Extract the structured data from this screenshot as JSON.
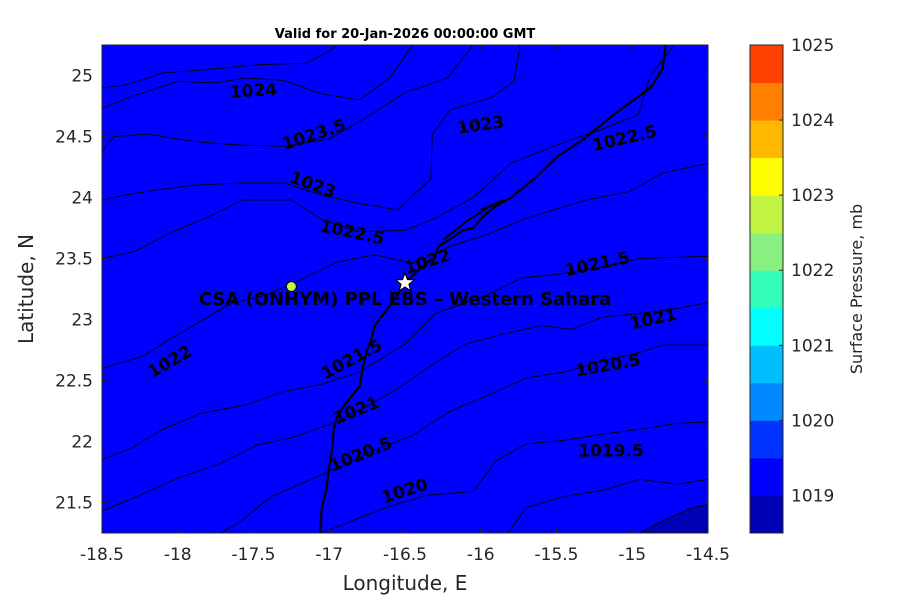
{
  "chart_data": {
    "type": "contour",
    "title": "Valid for 20-Jan-2026 00:00:00 GMT",
    "xlabel": "Longitude, E",
    "ylabel": "Latitude, N",
    "xlim": [
      -18.5,
      -14.5
    ],
    "ylim": [
      21.25,
      25.25
    ],
    "xticks": [
      "-18.5",
      "-18",
      "-17.5",
      "-17",
      "-16.5",
      "-16",
      "-15.5",
      "-15",
      "-14.5"
    ],
    "yticks": [
      "21.5",
      "22",
      "22.5",
      "23",
      "23.5",
      "24",
      "24.5",
      "25"
    ],
    "colorbar": {
      "label": "Surface Pressure, mb",
      "range": [
        1018.5,
        1025
      ],
      "ticks": [
        "1019",
        "1020",
        "1021",
        "1022",
        "1023",
        "1024",
        "1025"
      ],
      "levels": [
        {
          "from": 1018.5,
          "to": 1019.0,
          "color": "#0000b4"
        },
        {
          "from": 1019.0,
          "to": 1019.5,
          "color": "#0000ff"
        },
        {
          "from": 1019.5,
          "to": 1020.0,
          "color": "#0033ff"
        },
        {
          "from": 1020.0,
          "to": 1020.5,
          "color": "#0088ff"
        },
        {
          "from": 1020.5,
          "to": 1021.0,
          "color": "#00bfff"
        },
        {
          "from": 1021.0,
          "to": 1021.5,
          "color": "#00ffff"
        },
        {
          "from": 1021.5,
          "to": 1022.0,
          "color": "#33ffbb"
        },
        {
          "from": 1022.0,
          "to": 1022.5,
          "color": "#88f080"
        },
        {
          "from": 1022.5,
          "to": 1023.0,
          "color": "#c2f542"
        },
        {
          "from": 1023.0,
          "to": 1023.5,
          "color": "#ffff00"
        },
        {
          "from": 1023.5,
          "to": 1024.0,
          "color": "#ffb800"
        },
        {
          "from": 1024.0,
          "to": 1024.5,
          "color": "#ff8000"
        },
        {
          "from": 1024.5,
          "to": 1025.0,
          "color": "#ff4000"
        }
      ]
    },
    "contours": [
      {
        "level": 1024.5,
        "color": "#ff4000",
        "points": [
          [
            -18.5,
            25.25
          ],
          [
            -18.5,
            24.9
          ],
          [
            -18.35,
            24.92
          ],
          [
            -18.1,
            25.02
          ],
          [
            -17.8,
            25.05
          ],
          [
            -17.45,
            25.09
          ],
          [
            -17.15,
            25.1
          ],
          [
            -17,
            25.2
          ],
          [
            -16.95,
            25.25
          ]
        ]
      },
      {
        "level": 1024,
        "color": "#ff8000",
        "points": [
          [
            -18.5,
            25.25
          ],
          [
            -18.5,
            24.73
          ],
          [
            -18.3,
            24.83
          ],
          [
            -18.0,
            24.95
          ],
          [
            -17.75,
            24.94
          ],
          [
            -17.55,
            24.98
          ],
          [
            -17.3,
            24.96
          ],
          [
            -17.05,
            24.85
          ],
          [
            -16.8,
            24.8
          ],
          [
            -16.6,
            24.98
          ],
          [
            -16.45,
            25.25
          ]
        ]
      },
      {
        "level": 1023.5,
        "color": "#ffb800",
        "points": [
          [
            -18.5,
            25.25
          ],
          [
            -18.5,
            24.38
          ],
          [
            -18.42,
            24.5
          ],
          [
            -18.2,
            24.52
          ],
          [
            -17.9,
            24.46
          ],
          [
            -17.6,
            24.43
          ],
          [
            -17.3,
            24.42
          ],
          [
            -17.0,
            24.48
          ],
          [
            -16.75,
            24.66
          ],
          [
            -16.5,
            24.86
          ],
          [
            -16.22,
            24.98
          ],
          [
            -16.05,
            25.25
          ]
        ]
      },
      {
        "level": 1023,
        "color": "#ffff00",
        "points": [
          [
            -18.5,
            25.25
          ],
          [
            -18.5,
            23.98
          ],
          [
            -18.35,
            24.02
          ],
          [
            -18.15,
            24.06
          ],
          [
            -17.9,
            24.1
          ],
          [
            -17.6,
            24.12
          ],
          [
            -17.3,
            24.12
          ],
          [
            -17.05,
            24.02
          ],
          [
            -16.8,
            23.95
          ],
          [
            -16.55,
            23.9
          ],
          [
            -16.33,
            24.15
          ],
          [
            -16.32,
            24.52
          ],
          [
            -16.2,
            24.72
          ],
          [
            -15.93,
            24.82
          ],
          [
            -15.78,
            24.95
          ],
          [
            -15.74,
            25.25
          ]
        ]
      },
      {
        "level": 1022.5,
        "color": "#c2f542",
        "points": [
          [
            -18.5,
            25.25
          ],
          [
            -18.5,
            23.5
          ],
          [
            -18.28,
            23.56
          ],
          [
            -18.05,
            23.71
          ],
          [
            -17.8,
            23.84
          ],
          [
            -17.57,
            23.98
          ],
          [
            -17.25,
            23.98
          ],
          [
            -17.05,
            23.82
          ],
          [
            -16.8,
            23.72
          ],
          [
            -16.5,
            23.73
          ],
          [
            -16.3,
            23.83
          ],
          [
            -16.05,
            24.0
          ],
          [
            -15.8,
            24.28
          ],
          [
            -15.5,
            24.43
          ],
          [
            -15.2,
            24.56
          ],
          [
            -14.96,
            24.68
          ],
          [
            -14.88,
            25.0
          ],
          [
            -14.72,
            25.25
          ]
        ]
      },
      {
        "level": 1022,
        "color": "#88f080",
        "points": [
          [
            -18.5,
            25.25
          ],
          [
            -18.5,
            22.6
          ],
          [
            -18.23,
            22.7
          ],
          [
            -18.05,
            22.84
          ],
          [
            -17.87,
            22.97
          ],
          [
            -17.65,
            23.13
          ],
          [
            -17.42,
            23.2
          ],
          [
            -17.2,
            23.32
          ],
          [
            -16.95,
            23.47
          ],
          [
            -16.7,
            23.53
          ],
          [
            -16.45,
            23.46
          ],
          [
            -16.2,
            23.6
          ],
          [
            -15.95,
            23.7
          ],
          [
            -15.7,
            23.83
          ],
          [
            -15.3,
            23.98
          ],
          [
            -15.02,
            24.05
          ],
          [
            -14.8,
            24.2
          ],
          [
            -14.5,
            24.28
          ],
          [
            -14.5,
            25.25
          ]
        ]
      },
      {
        "level": 1021.5,
        "color": "#33ffbb",
        "points": [
          [
            -18.5,
            25.25
          ],
          [
            -18.5,
            21.85
          ],
          [
            -18.3,
            21.95
          ],
          [
            -18.1,
            22.1
          ],
          [
            -17.85,
            22.23
          ],
          [
            -17.55,
            22.3
          ],
          [
            -17.3,
            22.41
          ],
          [
            -17.05,
            22.47
          ],
          [
            -16.8,
            22.57
          ],
          [
            -16.5,
            22.8
          ],
          [
            -16.3,
            23.05
          ],
          [
            -15.98,
            23.19
          ],
          [
            -15.73,
            23.34
          ],
          [
            -15.5,
            23.37
          ],
          [
            -15.2,
            23.43
          ],
          [
            -14.95,
            23.5
          ],
          [
            -14.7,
            23.51
          ],
          [
            -14.5,
            23.52
          ],
          [
            -14.5,
            25.25
          ]
        ]
      },
      {
        "level": 1021,
        "color": "#00ffff",
        "points": [
          [
            -18.5,
            25.25
          ],
          [
            -18.5,
            21.43
          ],
          [
            -18.25,
            21.56
          ],
          [
            -17.98,
            21.71
          ],
          [
            -17.72,
            21.82
          ],
          [
            -17.48,
            21.97
          ],
          [
            -17.25,
            22.03
          ],
          [
            -17.0,
            22.14
          ],
          [
            -16.75,
            22.29
          ],
          [
            -16.55,
            22.43
          ],
          [
            -16.32,
            22.63
          ],
          [
            -16.1,
            22.8
          ],
          [
            -15.85,
            22.88
          ],
          [
            -15.6,
            22.95
          ],
          [
            -15.4,
            22.92
          ],
          [
            -15.2,
            23.02
          ],
          [
            -14.95,
            23.05
          ],
          [
            -14.7,
            23.09
          ],
          [
            -14.5,
            23.14
          ],
          [
            -14.5,
            25.25
          ]
        ]
      },
      {
        "level": 1020.5,
        "color": "#00bfff",
        "points": [
          [
            -18.5,
            25.25
          ],
          [
            -18.5,
            21.25
          ],
          [
            -17.72,
            21.25
          ],
          [
            -17.6,
            21.33
          ],
          [
            -17.38,
            21.55
          ],
          [
            -17.12,
            21.69
          ],
          [
            -16.9,
            21.81
          ],
          [
            -16.7,
            21.93
          ],
          [
            -16.45,
            22.05
          ],
          [
            -16.2,
            22.25
          ],
          [
            -15.95,
            22.38
          ],
          [
            -15.7,
            22.52
          ],
          [
            -15.45,
            22.57
          ],
          [
            -15.2,
            22.66
          ],
          [
            -14.95,
            22.73
          ],
          [
            -14.8,
            22.79
          ],
          [
            -14.5,
            22.79
          ],
          [
            -14.5,
            25.25
          ]
        ]
      },
      {
        "level": 1020,
        "color": "#0088ff",
        "points": [
          [
            -18.5,
            25.25
          ],
          [
            -18.5,
            21.25
          ],
          [
            -17.05,
            21.25
          ],
          [
            -16.85,
            21.35
          ],
          [
            -16.6,
            21.47
          ],
          [
            -16.35,
            21.56
          ],
          [
            -16.05,
            21.59
          ],
          [
            -15.9,
            21.84
          ],
          [
            -15.7,
            21.98
          ],
          [
            -15.45,
            22.01
          ],
          [
            -15.2,
            22.06
          ],
          [
            -14.95,
            22.1
          ],
          [
            -14.7,
            22.15
          ],
          [
            -14.5,
            22.16
          ],
          [
            -14.5,
            25.25
          ]
        ]
      },
      {
        "level": 1019.5,
        "color": "#0033ff",
        "points": [
          [
            -18.5,
            25.25
          ],
          [
            -18.5,
            21.25
          ],
          [
            -15.82,
            21.25
          ],
          [
            -15.7,
            21.46
          ],
          [
            -15.45,
            21.55
          ],
          [
            -15.2,
            21.6
          ],
          [
            -14.95,
            21.69
          ],
          [
            -14.7,
            21.65
          ],
          [
            -14.5,
            21.69
          ],
          [
            -14.5,
            25.25
          ]
        ]
      },
      {
        "level": 1019,
        "color": "#0000ff",
        "points": [
          [
            -18.5,
            25.25
          ],
          [
            -18.5,
            21.25
          ],
          [
            -14.95,
            21.25
          ],
          [
            -14.8,
            21.35
          ],
          [
            -14.6,
            21.46
          ],
          [
            -14.5,
            21.48
          ],
          [
            -14.5,
            25.25
          ]
        ]
      }
    ],
    "contour_labels": [
      {
        "text": "1024",
        "x": -17.5,
        "y": 24.87,
        "angle": -3
      },
      {
        "text": "1023.5",
        "x": -17.1,
        "y": 24.51,
        "angle": -18
      },
      {
        "text": "1023",
        "x": -16.0,
        "y": 24.59,
        "angle": -8
      },
      {
        "text": "1022.5",
        "x": -15.05,
        "y": 24.48,
        "angle": -13
      },
      {
        "text": "1023",
        "x": -17.11,
        "y": 24.1,
        "angle": 20
      },
      {
        "text": "1022.5",
        "x": -16.85,
        "y": 23.71,
        "angle": 12
      },
      {
        "text": "1022",
        "x": -16.35,
        "y": 23.47,
        "angle": -18
      },
      {
        "text": "1021.5",
        "x": -15.23,
        "y": 23.45,
        "angle": -12
      },
      {
        "text": "1021",
        "x": -14.86,
        "y": 23.0,
        "angle": -12
      },
      {
        "text": "1022",
        "x": -18.05,
        "y": 22.65,
        "angle": -30
      },
      {
        "text": "1021.5",
        "x": -16.85,
        "y": 22.67,
        "angle": -28
      },
      {
        "text": "1020.5",
        "x": -15.16,
        "y": 22.62,
        "angle": -10
      },
      {
        "text": "1021",
        "x": -16.82,
        "y": 22.25,
        "angle": -22
      },
      {
        "text": "1020.5",
        "x": -16.79,
        "y": 21.89,
        "angle": -22
      },
      {
        "text": "1019.5",
        "x": -15.14,
        "y": 21.92,
        "angle": 0
      },
      {
        "text": "1020",
        "x": -16.5,
        "y": 21.59,
        "angle": -18
      }
    ],
    "coastline": [
      [
        -14.78,
        25.25
      ],
      [
        -14.8,
        25.05
      ],
      [
        -14.88,
        24.9
      ],
      [
        -15.1,
        24.7
      ],
      [
        -15.32,
        24.48
      ],
      [
        -15.5,
        24.33
      ],
      [
        -15.65,
        24.15
      ],
      [
        -15.8,
        24.0
      ],
      [
        -15.9,
        23.93
      ],
      [
        -15.98,
        23.85
      ],
      [
        -16.05,
        23.75
      ],
      [
        -16.12,
        23.73
      ],
      [
        -16.2,
        23.66
      ],
      [
        -16.28,
        23.6
      ],
      [
        -16.3,
        23.52
      ],
      [
        -16.4,
        23.42
      ],
      [
        -16.5,
        23.3
      ],
      [
        -16.55,
        23.2
      ],
      [
        -16.62,
        23.08
      ],
      [
        -16.7,
        22.95
      ],
      [
        -16.72,
        22.85
      ],
      [
        -16.75,
        22.75
      ],
      [
        -16.78,
        22.6
      ],
      [
        -16.8,
        22.45
      ],
      [
        -16.9,
        22.3
      ],
      [
        -16.95,
        22.2
      ],
      [
        -16.97,
        22.1
      ],
      [
        -16.98,
        21.95
      ],
      [
        -17.0,
        21.8
      ],
      [
        -17.02,
        21.6
      ],
      [
        -17.05,
        21.45
      ],
      [
        -17.06,
        21.25
      ]
    ],
    "coast_inlet": [
      [
        -16.0,
        23.9
      ],
      [
        -15.9,
        23.95
      ],
      [
        -15.85,
        23.98
      ],
      [
        -15.95,
        23.92
      ],
      [
        -16.1,
        23.8
      ],
      [
        -16.2,
        23.7
      ],
      [
        -16.25,
        23.65
      ]
    ],
    "island_point": {
      "x": -17.25,
      "y": 23.27
    },
    "site": {
      "x": -16.5,
      "y": 23.3,
      "marker": "star",
      "label": "CSA (ONHYM) PPL EBS – Western Sahara"
    }
  }
}
